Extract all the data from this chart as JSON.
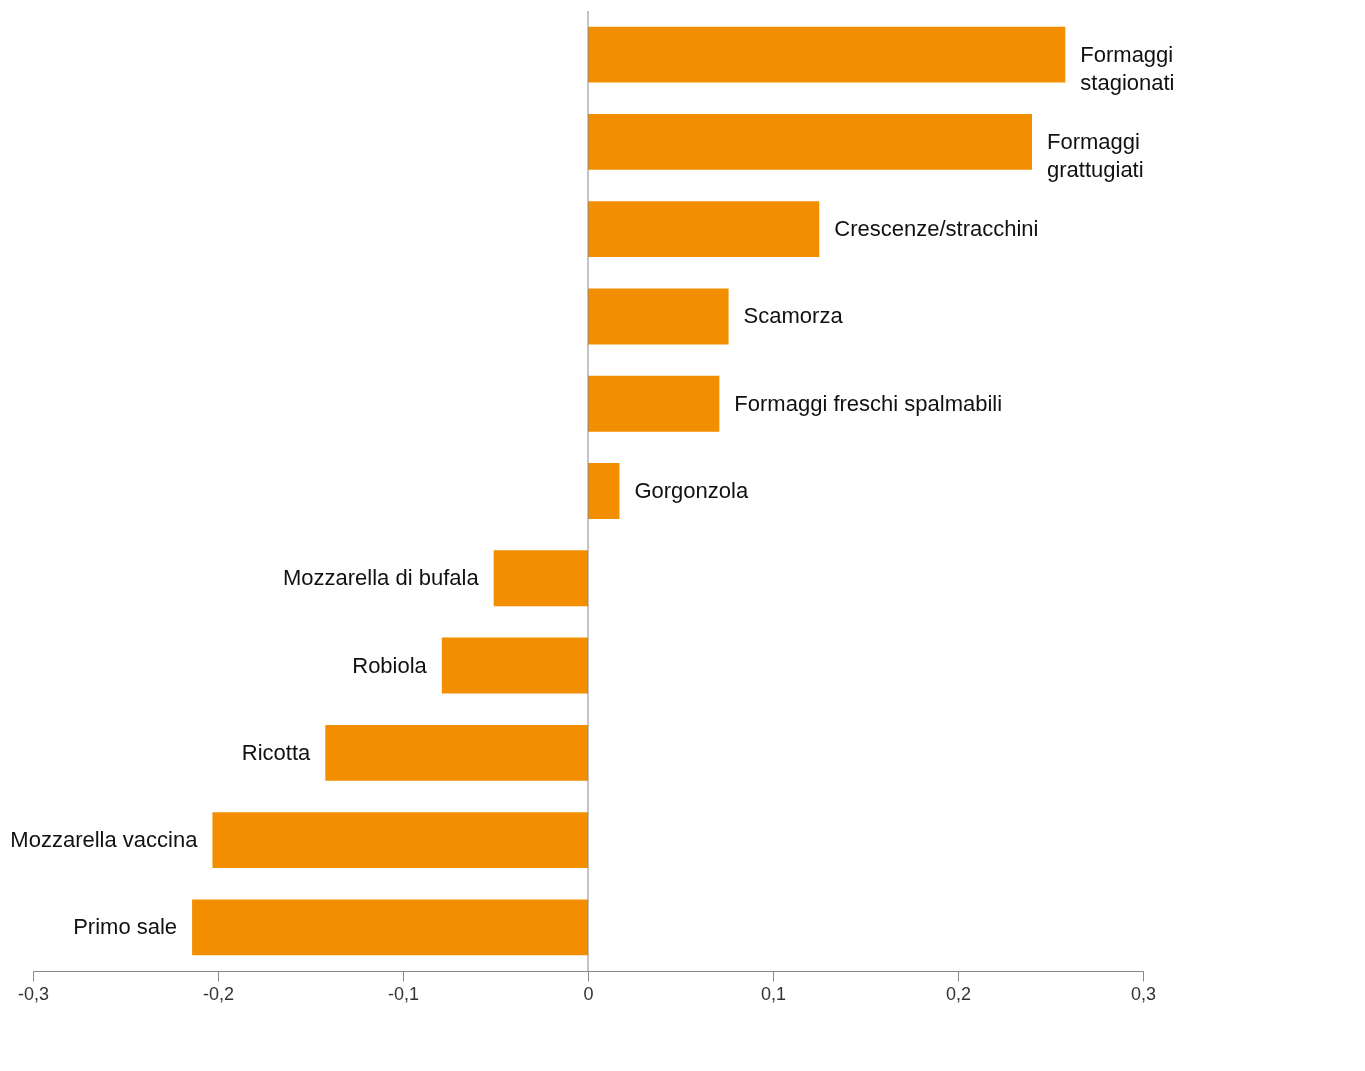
{
  "chart_data": {
    "type": "bar",
    "orientation": "horizontal",
    "categories": [
      "Formaggi\nstagionati",
      "Formaggi\ngrattugiati",
      "Crescenze/stracchini",
      "Scamorza",
      "Formaggi freschi spalmabili",
      "Gorgonzola",
      "Mozzarella di bufala",
      "Robiola",
      "Ricotta",
      "Mozzarella vaccina",
      "Primo sale"
    ],
    "values": [
      0.258,
      0.24,
      0.125,
      0.076,
      0.071,
      0.017,
      -0.051,
      -0.079,
      -0.142,
      -0.203,
      -0.214
    ],
    "color": "#f28e00",
    "xlim": [
      -0.3,
      0.3
    ],
    "xticks": [
      {
        "value": -0.3,
        "label": "-0,3"
      },
      {
        "value": -0.2,
        "label": "-0,2"
      },
      {
        "value": -0.1,
        "label": "-0,1"
      },
      {
        "value": 0,
        "label": "0"
      },
      {
        "value": 0.1,
        "label": "0,1"
      },
      {
        "value": 0.2,
        "label": "0,2"
      },
      {
        "value": 0.3,
        "label": "0,3"
      }
    ],
    "ref_lines": [
      {
        "axis": "x",
        "value": 0,
        "color": "#888888"
      }
    ],
    "grid": false
  }
}
